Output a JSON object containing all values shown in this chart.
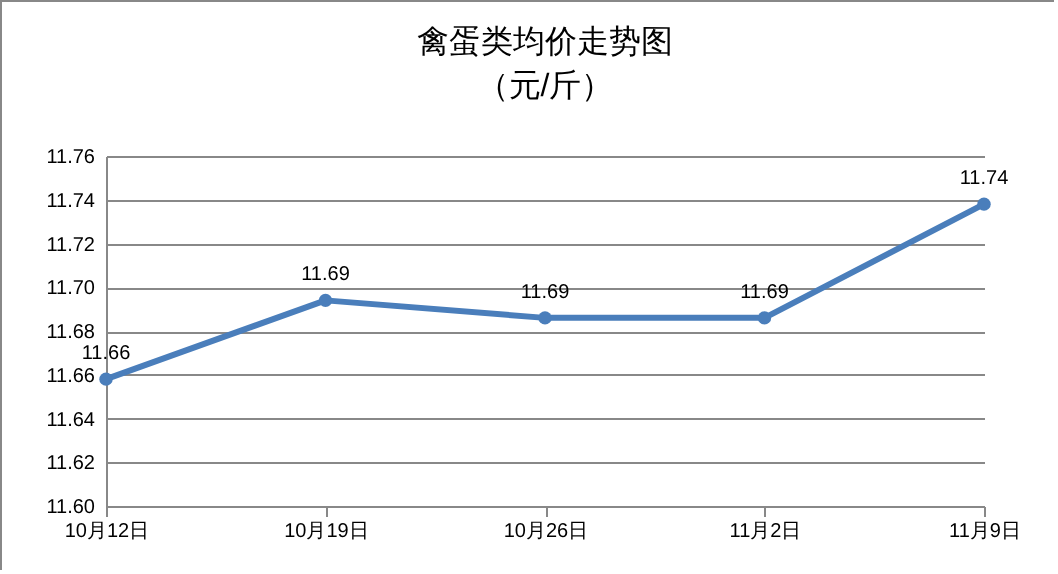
{
  "chart_data": {
    "type": "line",
    "title": "禽蛋类均价走势图",
    "subtitle": "（元/斤）",
    "categories": [
      "10月12日",
      "10月19日",
      "10月26日",
      "11月2日",
      "11月9日"
    ],
    "series": [
      {
        "color": "#4a7ebb",
        "values": [
          11.658,
          11.694,
          11.686,
          11.686,
          11.738
        ],
        "value_labels": [
          "11.66",
          "11.69",
          "11.69",
          "11.69",
          "11.74"
        ]
      }
    ],
    "ylim": [
      11.6,
      11.76
    ],
    "yticks": [
      {
        "value": 11.6,
        "label": "11.60"
      },
      {
        "value": 11.62,
        "label": "11.62"
      },
      {
        "value": 11.64,
        "label": "11.64"
      },
      {
        "value": 11.66,
        "label": "11.66"
      },
      {
        "value": 11.68,
        "label": "11.68"
      },
      {
        "value": 11.7,
        "label": "11.70"
      },
      {
        "value": 11.72,
        "label": "11.72"
      },
      {
        "value": 11.74,
        "label": "11.74"
      },
      {
        "value": 11.76,
        "label": "11.76"
      }
    ],
    "grid": "y",
    "marker": "circle",
    "line_style": "solid",
    "legend": false
  }
}
